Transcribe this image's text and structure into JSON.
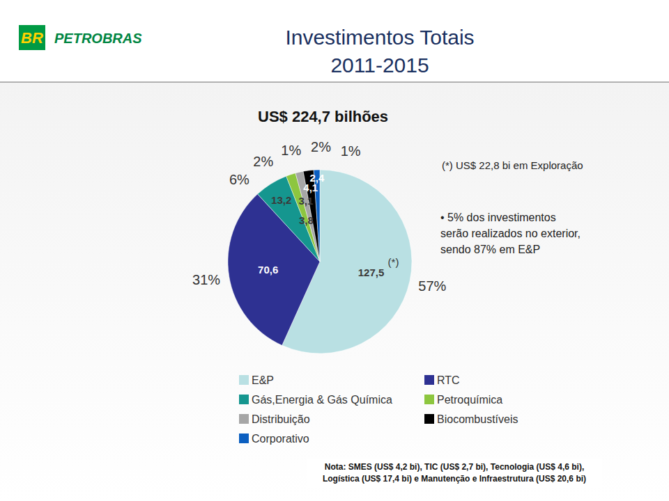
{
  "chart_data": {
    "type": "pie",
    "title": "Investimentos Totais",
    "subtitle": "2011-2015",
    "categories": [
      "E&P",
      "RTC",
      "Gás,Energia & Gás Química",
      "Petroquímica",
      "Distribuição",
      "Biocombustíveis",
      "Corporativo"
    ],
    "values": [
      127.5,
      70.6,
      13.2,
      3.8,
      3.1,
      4.1,
      2.4
    ],
    "value_labels": [
      "127,5",
      "70,6",
      "13,2",
      "3,8",
      "3,1",
      "4,1",
      "2,4"
    ],
    "percentages": [
      57,
      31,
      6,
      2,
      1,
      2,
      1
    ],
    "percentage_labels": [
      "57%",
      "31%",
      "6%",
      "2%",
      "1%",
      "2%",
      "1%"
    ],
    "colors": [
      "#b9e0e3",
      "#2e3192",
      "#15968f",
      "#8dc63f",
      "#a6a6a6",
      "#000000",
      "#0b5fc0"
    ],
    "data_labels": true,
    "legend": "bottom",
    "annotations": {
      "logo_mark": "BR",
      "logo": "PETROBRAS",
      "total": "US$ 224,7 bilhões",
      "marker": "(*)",
      "exploration_note": "(*) US$ 22,8 bi em Exploração",
      "bullet": [
        "• 5% dos investimentos",
        "serão realizados no exterior,",
        "sendo 87% em E&P"
      ],
      "footnote": [
        "Nota: SMES (US$ 4,2 bi), TIC (US$ 2,7 bi), Tecnologia (US$ 4,6 bi),",
        "Logística (US$ 17,4 bi) e Manutenção e Infraestrutura (US$ 20,6 bi)"
      ]
    }
  }
}
